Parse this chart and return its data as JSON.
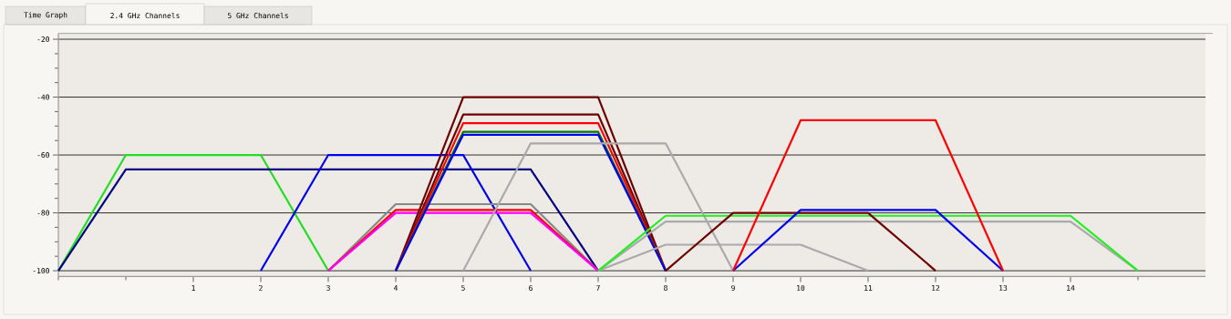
{
  "chart_data": {
    "type": "line",
    "annotations": [
      "Time Graph",
      "2.4 GHz Channels",
      "5 GHz Channels"
    ],
    "xlim": [
      -1,
      16
    ],
    "ylim": [
      -102,
      -18
    ],
    "xticks": [
      {
        "value": -1,
        "label": null
      },
      {
        "value": 0,
        "label": null
      },
      1,
      2,
      3,
      4,
      5,
      6,
      7,
      8,
      9,
      10,
      11,
      12,
      13,
      14,
      {
        "value": 15,
        "label": null
      }
    ],
    "yticks": [
      -20,
      {
        "value": -25,
        "label": null
      },
      {
        "value": -30,
        "label": null
      },
      {
        "value": -35,
        "label": null
      },
      -40,
      {
        "value": -45,
        "label": null
      },
      {
        "value": -50,
        "label": null
      },
      {
        "value": -55,
        "label": null
      },
      -60,
      {
        "value": -65,
        "label": null
      },
      {
        "value": -70,
        "label": null
      },
      {
        "value": -75,
        "label": null
      },
      -80,
      {
        "value": -85,
        "label": null
      },
      {
        "value": -90,
        "label": null
      },
      {
        "value": -95,
        "label": null
      },
      -100
    ],
    "grid": "y",
    "marker": "none",
    "line_style": "solid",
    "series": [
      {
        "color": "#22dd22",
        "x": [
          -1,
          0,
          2,
          3
        ],
        "values": [
          -100,
          -60,
          -60,
          -100
        ]
      },
      {
        "color": "#000080",
        "x": [
          -1,
          0,
          6,
          7
        ],
        "values": [
          -100,
          -65,
          -65,
          -100
        ]
      },
      {
        "color": "#0000ee",
        "x": [
          2,
          3,
          5,
          6
        ],
        "values": [
          -100,
          -60,
          -60,
          -100
        ]
      },
      {
        "color": "#888888",
        "x": [
          3,
          4,
          6,
          7
        ],
        "values": [
          -100,
          -77,
          -77,
          -100
        ]
      },
      {
        "color": "#ff0000",
        "x": [
          3,
          4,
          6,
          7
        ],
        "values": [
          -100,
          -79,
          -79,
          -100
        ]
      },
      {
        "color": "#ff00ff",
        "x": [
          3,
          4,
          6,
          7
        ],
        "values": [
          -100,
          -80,
          -80,
          -100
        ]
      },
      {
        "color": "#6b0000",
        "x": [
          4,
          5,
          7,
          8
        ],
        "values": [
          -100,
          -40,
          -40,
          -100
        ]
      },
      {
        "color": "#6b0000",
        "x": [
          4,
          5,
          7,
          8
        ],
        "values": [
          -100,
          -46,
          -46,
          -100
        ]
      },
      {
        "color": "#ff0000",
        "x": [
          4,
          5,
          7,
          8
        ],
        "values": [
          -100,
          -49,
          -49,
          -100
        ]
      },
      {
        "color": "#007700",
        "x": [
          4,
          5,
          7,
          8
        ],
        "values": [
          -100,
          -52,
          -52,
          -100
        ]
      },
      {
        "color": "#0000ee",
        "x": [
          4,
          5,
          7,
          8
        ],
        "values": [
          -100,
          -53,
          -53,
          -100
        ]
      },
      {
        "color": "#aaaaaa",
        "x": [
          5,
          6,
          8,
          9
        ],
        "values": [
          -100,
          -56,
          -56,
          -100
        ]
      },
      {
        "color": "#aaaaaa",
        "x": [
          7,
          8,
          10,
          11
        ],
        "values": [
          -100,
          -91,
          -91,
          -100
        ]
      },
      {
        "color": "#aaaaaa",
        "x": [
          7,
          8,
          14,
          15
        ],
        "values": [
          -100,
          -83,
          -83,
          -100
        ]
      },
      {
        "color": "#22ee22",
        "x": [
          7,
          8,
          14,
          15
        ],
        "values": [
          -100,
          -81,
          -81,
          -100
        ]
      },
      {
        "color": "#6b0000",
        "x": [
          8,
          9,
          11,
          12
        ],
        "values": [
          -100,
          -80,
          -80,
          -100
        ]
      },
      {
        "color": "#0000ee",
        "x": [
          9,
          10,
          12,
          13
        ],
        "values": [
          -100,
          -79,
          -79,
          -100
        ]
      },
      {
        "color": "#ff0000",
        "x": [
          9,
          10,
          12,
          13
        ],
        "values": [
          -100,
          -48,
          -48,
          -100
        ]
      }
    ]
  }
}
